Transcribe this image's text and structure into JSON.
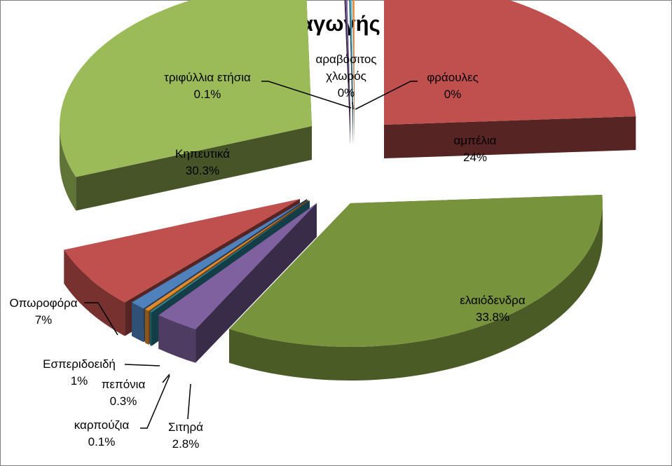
{
  "chart_data": {
    "type": "pie",
    "style": "3d-exploded",
    "title": "Κατανομή παραγωγής καλλιεργειών",
    "legend": "none",
    "slices": [
      {
        "label": "αμπέλια",
        "value": 24,
        "pct_label": "24%",
        "color": "#C0504D"
      },
      {
        "label": "ελαιόδενδρα",
        "value": 33.8,
        "pct_label": "33.8%",
        "color": "#77933C"
      },
      {
        "label": "Σιτηρά",
        "value": 2.8,
        "pct_label": "2.8%",
        "color": "#7F61A0"
      },
      {
        "label": "καρπούζια",
        "value": 0.1,
        "pct_label": "0.1%",
        "color": "#2C8A9E"
      },
      {
        "label": "πεπόνια",
        "value": 0.3,
        "pct_label": "0.3%",
        "color": "#E08A2E"
      },
      {
        "label": "Εσπεριδοειδή",
        "value": 1,
        "pct_label": "1%",
        "color": "#4F81BD"
      },
      {
        "label": "Οπωροφόρα",
        "value": 7,
        "pct_label": "7%",
        "color": "#C0504D"
      },
      {
        "label": "Κηπευτικά",
        "value": 30.3,
        "pct_label": "30.3%",
        "color": "#9BBB59"
      },
      {
        "label": "τριφύλλια ετήσια",
        "value": 0.1,
        "pct_label": "0.1%",
        "color": "#8064A2"
      },
      {
        "label": "αραβόσιτος χλωρός",
        "value": 0,
        "pct_label": "0%",
        "color": "#4BACC6"
      },
      {
        "label": "φράουλες",
        "value": 0,
        "pct_label": "0%",
        "color": "#F79646"
      }
    ]
  }
}
